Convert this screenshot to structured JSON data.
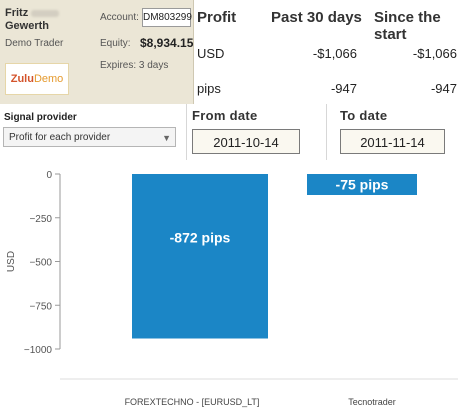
{
  "account": {
    "name_first": "Fritz",
    "name_last": "Gewerth",
    "role": "Demo Trader",
    "logo_part1": "Zulu",
    "logo_part2": "Demo",
    "account_label": "Account:",
    "account_value": "DM803299",
    "equity_label": "Equity:",
    "equity_value": "$8,934.15",
    "expires": "Expires: 3 days"
  },
  "profit_table": {
    "headers": [
      "Profit",
      "Past 30 days",
      "Since the start"
    ],
    "rows": [
      {
        "label": "USD",
        "past30": "-$1,066",
        "since": "-$1,066"
      },
      {
        "label": "pips",
        "past30": "-947",
        "since": "-947"
      }
    ]
  },
  "controls": {
    "signal_provider_label": "Signal provider",
    "signal_provider_value": "Profit for each provider",
    "from_label": "From date",
    "from_value": "2011-10-14",
    "to_label": "To date",
    "to_value": "2011-11-14"
  },
  "colors": {
    "bar": "#1b86c6",
    "axis": "#9a9a9a"
  },
  "chart_data": {
    "type": "bar",
    "categories": [
      "FOREXTECHNO - [EURUSD_LT]",
      "Tecnotrader"
    ],
    "values": [
      -940,
      -120
    ],
    "data_labels": [
      "-872 pips",
      "-75 pips"
    ],
    "ylabel": "USD",
    "ylim": [
      -1000,
      0
    ],
    "yticks": [
      0,
      -250,
      -500,
      -750,
      -1000
    ]
  }
}
